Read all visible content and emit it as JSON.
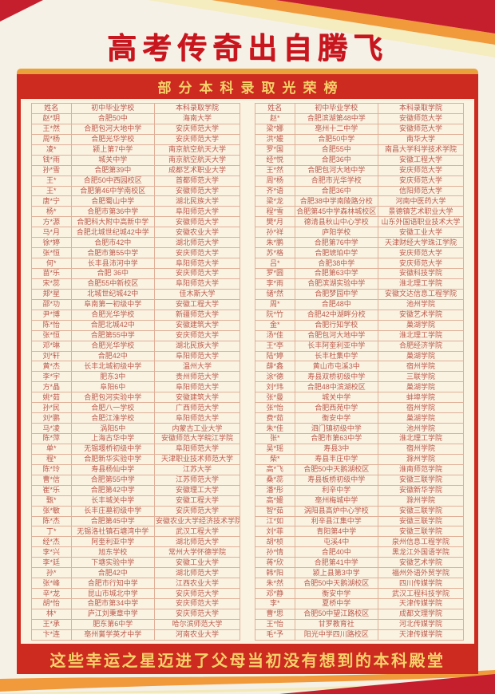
{
  "page": {
    "title": "高考传奇出自腾飞",
    "subtitle": "部分本科录取光荣榜",
    "footer": "这些幸运之星迈进了父母当初没有想到的本科殿堂"
  },
  "colors": {
    "title_red": "#c8161e",
    "banner_red": "#cd2a20",
    "gold_strip": "#e9a23b",
    "panel_cream": "#faf3e2",
    "cell_border": "#e0af97",
    "table_text": "#bc5a4c",
    "banner_text_yellow": "#f6d169",
    "swoosh_orange": "#f09a3c",
    "swoosh_pale_yellow": "#f5ecc0"
  },
  "table": {
    "headers": [
      "姓名",
      "初中毕业学校",
      "本科录取学院"
    ],
    "left_rows": [
      [
        "赵*玥",
        "合肥50中",
        "海南大学"
      ],
      [
        "王*然",
        "合肥包河大地中学",
        "安庆师范大学"
      ],
      [
        "周*杨",
        "合肥光华学校",
        "安庆师范大学"
      ],
      [
        "凌*",
        "颍上第7中学",
        "南京航空航天大学"
      ],
      [
        "钱*雨",
        "城关中学",
        "南京航空航天大学"
      ],
      [
        "孙*雪",
        "合肥第39中",
        "成都艺术职业大学"
      ],
      [
        "王*",
        "合肥50中西园校区",
        "首都师范大学"
      ],
      [
        "王*",
        "合肥第46中学南校区",
        "安徽师范大学"
      ],
      [
        "唐*宁",
        "合肥蜀山中学",
        "湖北民族大学"
      ],
      [
        "杨*",
        "合肥市第36中学",
        "阜阳师范大学"
      ],
      [
        "方*源",
        "合肥科大附中高新中学",
        "安徽师范大学"
      ],
      [
        "马*月",
        "合肥北城世纪城42中学",
        "安徽农业大学"
      ],
      [
        "徐*婷",
        "合肥市42中",
        "湖北师范大学"
      ],
      [
        "张*恒",
        "合肥市第55中学",
        "安庆师范大学"
      ],
      [
        "何*",
        "长丰县沛河中学",
        "阜阳师范大学"
      ],
      [
        "苗*乐",
        "合肥 36中",
        "安庆师范大学"
      ],
      [
        "宋*蕊",
        "合肥55中新校区",
        "阜阳师范大学"
      ],
      [
        "郑*星",
        "北城世纪城42中",
        "佳木斯大学"
      ],
      [
        "邵*功",
        "阜南第一初级中学",
        "安徽工程大学"
      ],
      [
        "尹*博",
        "合肥光华学校",
        "新疆师范大学"
      ],
      [
        "陈*怡",
        "合肥北城42中",
        "安徽建筑大学"
      ],
      [
        "张*恒",
        "合肥第55中学",
        "安庆师范大学"
      ],
      [
        "邓*琳",
        "合肥光华学校",
        "湖北民族大学"
      ],
      [
        "刘*轩",
        "合肥42中",
        "阜阳师范大学"
      ],
      [
        "黄*杰",
        "长丰北城初级中学",
        "温州大学"
      ],
      [
        "李*宇",
        "肥东3中",
        "贵州师范大学"
      ],
      [
        "方*晶",
        "阜阳6中",
        "阜阳师范大学"
      ],
      [
        "姚*茹",
        "合肥包河实验中学",
        "安徽建筑大学"
      ],
      [
        "孙*民",
        "合肥八一学校",
        "广西师范大学"
      ],
      [
        "刘*鹏",
        "合肥江淮学校",
        "阜阳师范大学"
      ],
      [
        "马*凌",
        "涡阳5中",
        "内蒙古工业大学"
      ],
      [
        "陈*萍",
        "上海古华中学",
        "安徽师范大学皖江学院"
      ],
      [
        "单*",
        "无锡堰桥初级中学",
        "阜阳师范大学"
      ],
      [
        "程*",
        "合肥新华实验中学",
        "天津职业技术师范大学"
      ],
      [
        "陈*玲",
        "寿县杨仙中学",
        "江苏大学"
      ],
      [
        "曹*信",
        "合肥第55中学",
        "江苏师范大学"
      ],
      [
        "崔*乐",
        "合肥第42中学",
        "安徽理工大学"
      ],
      [
        "甄*",
        "长丰城关中学",
        "安徽工程大学"
      ],
      [
        "张*敏",
        "长丰庄墓初级中学",
        "安庆师范大学"
      ],
      [
        "陈*杰",
        "合肥第45中学",
        "安徽农业大学经济技术学院"
      ],
      [
        "丁*",
        "无锡洛社镇石塘湾中学",
        "武汉工程大学"
      ],
      [
        "经*杰",
        "阿奎利亚中学",
        "湖北师范大学"
      ],
      [
        "李*兴",
        "旭东学校",
        "常州大学怀德学院"
      ],
      [
        "李*廷",
        "下塘实验中学",
        "安徽工业大学"
      ],
      [
        "孙*",
        "合肥42中",
        "湖北师范大学"
      ],
      [
        "张*峰",
        "合肥市行知中学",
        "江西农业大学"
      ],
      [
        "辛*龙",
        "昆山市城北中学",
        "安庆师范大学"
      ],
      [
        "胡*怡",
        "合肥市第34中学",
        "安庆师范大学"
      ],
      [
        "林*",
        "庐江刘秉章中学",
        "安庆师范大学"
      ],
      [
        "王*承",
        "肥东第6中学",
        "哈尔滨师范大学"
      ],
      [
        "卞*连",
        "亳州黉学英才中学",
        "河南农业大学"
      ]
    ],
    "right_rows": [
      [
        "赵*",
        "合肥滨湖第48中学",
        "安徽师范大学"
      ],
      [
        "梁*娜",
        "亳州十二中学",
        "安徽师范大学"
      ],
      [
        "洪*媛",
        "合肥50中学",
        "南华大学"
      ],
      [
        "罗*国",
        "合肥55中",
        "南昌大学科学技术学院"
      ],
      [
        "经*悦",
        "合肥36中",
        "安徽工程大学"
      ],
      [
        "王*然",
        "合肥包河大地中学",
        "安庆师范大学"
      ],
      [
        "周*杨",
        "合肥市光华学校",
        "安庆师范大学"
      ],
      [
        "齐*语",
        "合肥36中",
        "信阳师范大学"
      ],
      [
        "梁*龙",
        "合肥38中学南陵路分校",
        "河南中医药大学"
      ],
      [
        "程*雪",
        "合肥第45中学森林城校区",
        "景德镇艺术职业大学"
      ],
      [
        "樊*月",
        "德清县秋山中心学校",
        "山东外国语职业技术大学"
      ],
      [
        "孙*祥",
        "庐阳学校",
        "安徽工业大学"
      ],
      [
        "朱*鹏",
        "合肥第76中学",
        "天津财经大学珠江学院"
      ],
      [
        "苏*格",
        "合肥琥珀中学",
        "安庆师范大学"
      ],
      [
        "吕*",
        "合肥38中学",
        "安庆师范大学"
      ],
      [
        "罗*圆",
        "合肥第63中学",
        "安徽科技学院"
      ],
      [
        "李*雨",
        "合肥滨湖实验中学",
        "淮北理工学院"
      ],
      [
        "储*然",
        "合肥梦园中学",
        "安徽文达信息工程学院"
      ],
      [
        "周*",
        "合肥48中",
        "池州学院"
      ],
      [
        "阮*竹",
        "合肥42中湖畔分校",
        "安徽艺术学院"
      ],
      [
        "金*",
        "合肥行知学校",
        "巢湖学院"
      ],
      [
        "汤*佳",
        "合肥包河大地中学",
        "淮北理工学院"
      ],
      [
        "王*亭",
        "长丰阿奎利亚中学",
        "合肥经济学院"
      ],
      [
        "陆*婷",
        "长丰杜集中学",
        "巢湖学院"
      ],
      [
        "薛*鑫",
        "黄山市屯溪3中",
        "宿州学院"
      ],
      [
        "涂*德",
        "寿县双桥初级中学",
        "三联学院"
      ],
      [
        "刘*玮",
        "合肥48中滨湖校区",
        "巢湖学院"
      ],
      [
        "张*曼",
        "城关中学",
        "蚌埠学院"
      ],
      [
        "张*怡",
        "合肥西苑中学",
        "宿州学院"
      ],
      [
        "费*茹",
        "衡安中学",
        "巢湖学院"
      ],
      [
        "朱*佳",
        "泗门镇初级中学",
        "池州学院"
      ],
      [
        "张*",
        "合肥市第63中学",
        "淮北理工学院"
      ],
      [
        "吴*瑶",
        "寿县3中",
        "宿州学院"
      ],
      [
        "柴*",
        "寿县丰庄中学",
        "滁州学院"
      ],
      [
        "高*飞",
        "合肥50中天鹅湖校区",
        "淮南师范学院"
      ],
      [
        "桑*蕊",
        "寿县板桥初级中学",
        "安徽三联学院"
      ],
      [
        "潘*彤",
        "利辛中学",
        "安徽新华学院"
      ],
      [
        "高*媛",
        "亳州梅城中学",
        "滁州学院"
      ],
      [
        "智*茹",
        "涡阳县高炉中心学校",
        "安徽三联学院"
      ],
      [
        "江*如",
        "利辛县江集中学",
        "安徽三联学院"
      ],
      [
        "刘*菲",
        "青阳第4中学",
        "安徽三联学院"
      ],
      [
        "胡*桢",
        "屯溪4中",
        "泉州信息工程学院"
      ],
      [
        "孙*情",
        "合肥40中",
        "黑龙江外国语学院"
      ],
      [
        "蒋*欣",
        "合肥第41中学",
        "安徽艺术学院"
      ],
      [
        "韩*阳",
        "颍上县第3中学",
        "福州外语外贸学院"
      ],
      [
        "朱*然",
        "合肥50中天鹅湖校区",
        "四川传媒学院"
      ],
      [
        "邓*静",
        "衡安中学",
        "武汉工程科技学院"
      ],
      [
        "李*",
        "夏桥中学",
        "天津传媒学院"
      ],
      [
        "曹*思",
        "合肥50中望江路校区",
        "成都文理学院"
      ],
      [
        "王*怡",
        "甘罗教育社",
        "河北传媒学院"
      ],
      [
        "毛*予",
        "阳光中学四川路校区",
        "天津传媒学院"
      ]
    ]
  }
}
